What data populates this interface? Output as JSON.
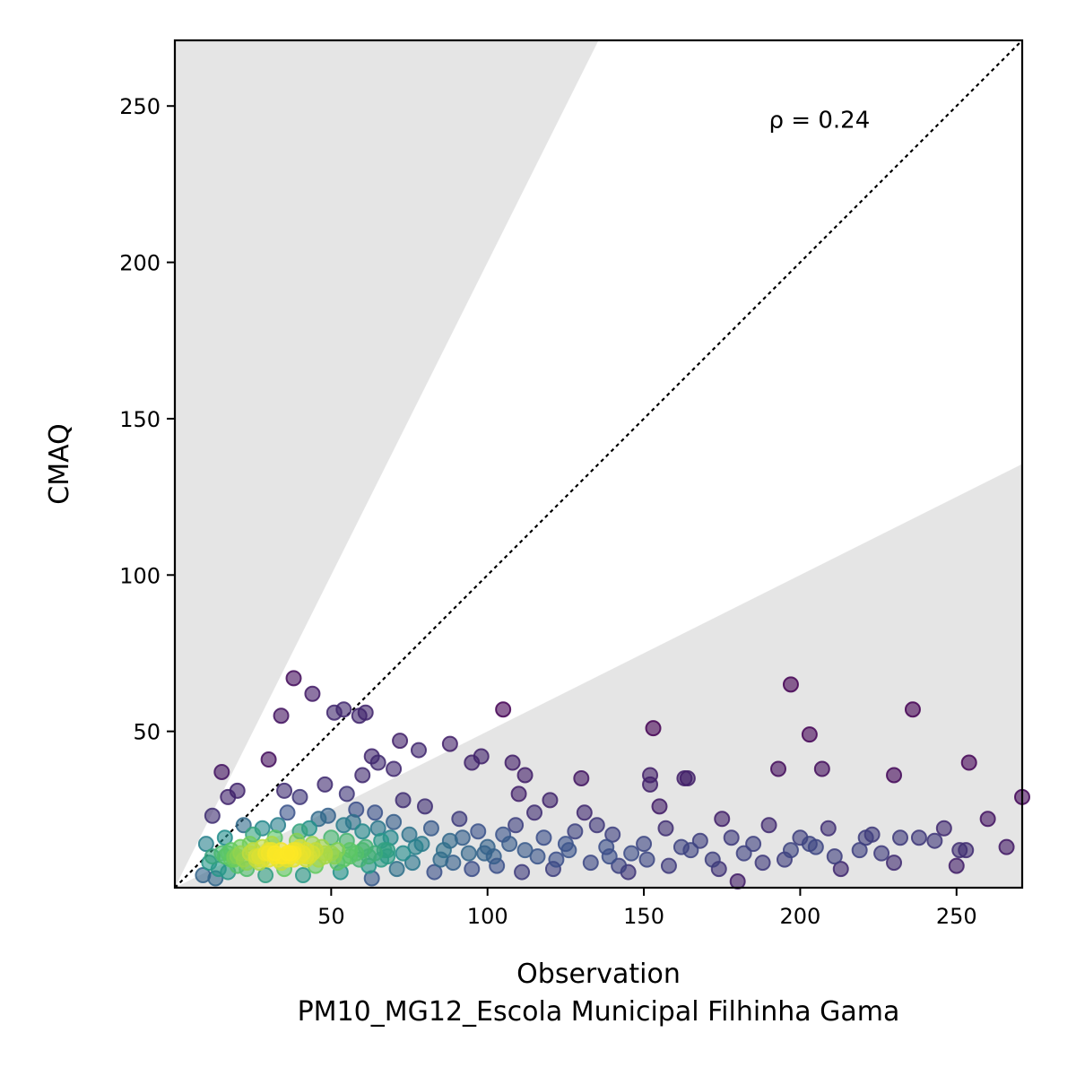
{
  "chart_data": {
    "type": "scatter",
    "title": "",
    "xlabel": "Observation",
    "xlabel_sub": "PM10_MG12_Escola Municipal Filhinha Gama",
    "ylabel": "CMAQ",
    "xlim": [
      0,
      271
    ],
    "ylim": [
      0,
      271
    ],
    "xticks": [
      50,
      100,
      150,
      200,
      250
    ],
    "yticks": [
      50,
      100,
      150,
      200,
      250
    ],
    "annotation": "ρ = 0.24",
    "annotation_pos_data": [
      190,
      243
    ],
    "reference_line": {
      "slope": 1,
      "style": "dotted",
      "color": "#000000"
    },
    "shaded_region": {
      "upper_slope": 2,
      "lower_slope": 0.5,
      "color": "#e5e5e5"
    },
    "colormap": "viridis",
    "colors": {
      "low_density": "#440154",
      "mid_density": "#21918c",
      "high_density": "#fde725"
    },
    "points": [
      [
        38,
        67
      ],
      [
        44,
        62
      ],
      [
        34,
        55
      ],
      [
        51,
        56
      ],
      [
        54,
        57
      ],
      [
        59,
        55
      ],
      [
        61,
        56
      ],
      [
        105,
        57
      ],
      [
        30,
        41
      ],
      [
        15,
        37
      ],
      [
        17,
        29
      ],
      [
        20,
        31
      ],
      [
        12,
        23
      ],
      [
        35,
        31
      ],
      [
        40,
        29
      ],
      [
        48,
        33
      ],
      [
        55,
        30
      ],
      [
        60,
        36
      ],
      [
        63,
        42
      ],
      [
        65,
        40
      ],
      [
        70,
        38
      ],
      [
        72,
        47
      ],
      [
        78,
        44
      ],
      [
        88,
        46
      ],
      [
        95,
        40
      ],
      [
        98,
        42
      ],
      [
        108,
        40
      ],
      [
        112,
        36
      ],
      [
        110,
        30
      ],
      [
        120,
        28
      ],
      [
        130,
        35
      ],
      [
        131,
        24
      ],
      [
        152,
        36
      ],
      [
        153,
        51
      ],
      [
        152,
        33
      ],
      [
        155,
        26
      ],
      [
        163,
        35
      ],
      [
        164,
        35
      ],
      [
        175,
        22
      ],
      [
        193,
        38
      ],
      [
        197,
        65
      ],
      [
        203,
        49
      ],
      [
        207,
        38
      ],
      [
        209,
        19
      ],
      [
        213,
        6
      ],
      [
        221,
        16
      ],
      [
        223,
        17
      ],
      [
        226,
        11
      ],
      [
        230,
        36
      ],
      [
        232,
        16
      ],
      [
        236,
        57
      ],
      [
        238,
        16
      ],
      [
        243,
        15
      ],
      [
        246,
        19
      ],
      [
        250,
        7
      ],
      [
        251,
        12
      ],
      [
        253,
        12
      ],
      [
        254,
        40
      ],
      [
        260,
        22
      ],
      [
        266,
        13
      ],
      [
        271,
        29
      ],
      [
        230,
        8
      ],
      [
        205,
        13
      ],
      [
        200,
        16
      ],
      [
        195,
        9
      ],
      [
        190,
        20
      ],
      [
        185,
        14
      ],
      [
        180,
        2
      ],
      [
        178,
        16
      ],
      [
        172,
        9
      ],
      [
        168,
        15
      ],
      [
        162,
        13
      ],
      [
        157,
        19
      ],
      [
        150,
        14
      ],
      [
        146,
        11
      ],
      [
        142,
        7
      ],
      [
        140,
        17
      ],
      [
        138,
        13
      ],
      [
        135,
        20
      ],
      [
        128,
        18
      ],
      [
        125,
        14
      ],
      [
        122,
        9
      ],
      [
        118,
        16
      ],
      [
        115,
        24
      ],
      [
        112,
        12
      ],
      [
        109,
        20
      ],
      [
        105,
        17
      ],
      [
        102,
        10
      ],
      [
        100,
        13
      ],
      [
        97,
        18
      ],
      [
        94,
        11
      ],
      [
        91,
        22
      ],
      [
        88,
        15
      ],
      [
        85,
        9
      ],
      [
        82,
        19
      ],
      [
        80,
        26
      ],
      [
        77,
        13
      ],
      [
        75,
        17
      ],
      [
        73,
        28
      ],
      [
        70,
        21
      ],
      [
        68,
        10
      ],
      [
        66,
        15
      ],
      [
        64,
        24
      ],
      [
        62,
        7
      ],
      [
        60,
        18
      ],
      [
        58,
        25
      ],
      [
        56,
        12
      ],
      [
        54,
        20
      ],
      [
        52,
        8
      ],
      [
        50,
        16
      ],
      [
        48,
        11
      ],
      [
        46,
        22
      ],
      [
        44,
        14
      ],
      [
        42,
        9
      ],
      [
        40,
        18
      ],
      [
        38,
        12
      ],
      [
        36,
        24
      ],
      [
        34,
        8
      ],
      [
        32,
        16
      ],
      [
        30,
        11
      ],
      [
        28,
        19
      ],
      [
        26,
        9
      ],
      [
        24,
        14
      ],
      [
        22,
        20
      ],
      [
        20,
        7
      ],
      [
        18,
        12
      ],
      [
        16,
        16
      ],
      [
        14,
        6
      ],
      [
        12,
        10
      ],
      [
        10,
        14
      ],
      [
        9,
        4
      ],
      [
        11,
        8
      ],
      [
        13,
        3
      ],
      [
        15,
        11
      ],
      [
        17,
        5
      ],
      [
        19,
        9
      ],
      [
        21,
        13
      ],
      [
        23,
        6
      ],
      [
        25,
        17
      ],
      [
        27,
        10
      ],
      [
        29,
        4
      ],
      [
        31,
        14
      ],
      [
        33,
        20
      ],
      [
        35,
        6
      ],
      [
        37,
        10
      ],
      [
        39,
        15
      ],
      [
        41,
        4
      ],
      [
        43,
        19
      ],
      [
        45,
        7
      ],
      [
        47,
        13
      ],
      [
        49,
        23
      ],
      [
        51,
        10
      ],
      [
        53,
        5
      ],
      [
        55,
        15
      ],
      [
        57,
        21
      ],
      [
        59,
        9
      ],
      [
        61,
        13
      ],
      [
        63,
        3
      ],
      [
        65,
        19
      ],
      [
        67,
        12
      ],
      [
        69,
        16
      ],
      [
        71,
        6
      ],
      [
        73,
        11
      ],
      [
        76,
        8
      ],
      [
        79,
        14
      ],
      [
        83,
        5
      ],
      [
        86,
        12
      ],
      [
        89,
        8
      ],
      [
        92,
        16
      ],
      [
        95,
        6
      ],
      [
        99,
        11
      ],
      [
        103,
        7
      ],
      [
        107,
        14
      ],
      [
        111,
        5
      ],
      [
        116,
        10
      ],
      [
        121,
        6
      ],
      [
        126,
        12
      ],
      [
        133,
        8
      ],
      [
        139,
        10
      ],
      [
        145,
        5
      ],
      [
        151,
        9
      ],
      [
        158,
        7
      ],
      [
        165,
        12
      ],
      [
        174,
        6
      ],
      [
        182,
        11
      ],
      [
        188,
        8
      ],
      [
        197,
        12
      ],
      [
        203,
        14
      ],
      [
        211,
        10
      ],
      [
        219,
        12
      ],
      [
        28,
        13
      ],
      [
        30,
        9
      ],
      [
        32,
        10
      ],
      [
        34,
        12
      ],
      [
        36,
        11
      ],
      [
        38,
        9
      ],
      [
        40,
        10
      ],
      [
        42,
        12
      ],
      [
        44,
        11
      ],
      [
        46,
        9
      ],
      [
        27,
        8
      ],
      [
        29,
        11
      ],
      [
        31,
        12
      ],
      [
        33,
        9
      ],
      [
        35,
        10
      ],
      [
        37,
        11
      ],
      [
        39,
        12
      ],
      [
        41,
        11
      ],
      [
        43,
        10
      ],
      [
        45,
        12
      ],
      [
        26,
        10
      ],
      [
        28,
        9
      ],
      [
        30,
        12
      ],
      [
        32,
        11
      ],
      [
        34,
        10
      ],
      [
        36,
        9
      ],
      [
        38,
        11
      ],
      [
        40,
        13
      ],
      [
        42,
        10
      ],
      [
        48,
        10
      ],
      [
        50,
        11
      ],
      [
        52,
        12
      ],
      [
        54,
        9
      ],
      [
        56,
        10
      ],
      [
        58,
        11
      ],
      [
        60,
        12
      ],
      [
        62,
        10
      ],
      [
        64,
        11
      ],
      [
        66,
        9
      ],
      [
        68,
        12
      ],
      [
        24,
        11
      ],
      [
        22,
        9
      ],
      [
        20,
        10
      ],
      [
        25,
        12
      ],
      [
        23,
        8
      ],
      [
        21,
        11
      ],
      [
        19,
        10
      ],
      [
        18,
        9
      ],
      [
        17,
        11
      ],
      [
        16,
        10
      ]
    ]
  }
}
